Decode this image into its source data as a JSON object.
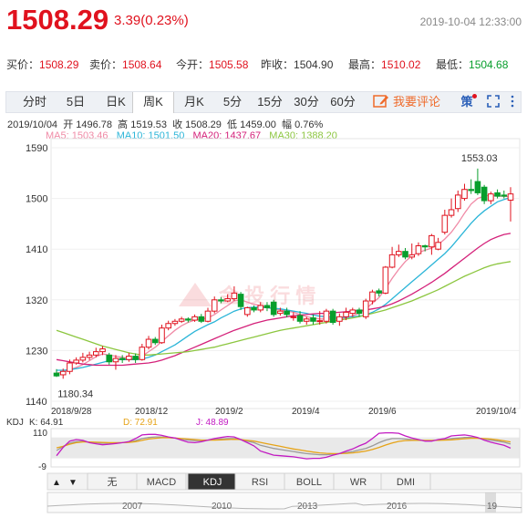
{
  "header": {
    "price": "1508.29",
    "change": "3.39(0.23%)",
    "timestamp": "2019-10-04 12:33:00"
  },
  "quote": {
    "bid_label": "买价：",
    "bid": "1508.29",
    "ask_label": "卖价：",
    "ask": "1508.64",
    "open_label": "今开：",
    "open": "1505.58",
    "prev_label": "昨收：",
    "prev": "1504.90",
    "high_label": "最高：",
    "high": "1510.02",
    "low_label": "最低：",
    "low": "1504.68"
  },
  "tabs": [
    "分时",
    "5日",
    "日K",
    "周K",
    "月K",
    "5分",
    "15分",
    "30分",
    "60分"
  ],
  "active_tab": "周K",
  "comment_label": "我要评论",
  "toolbar": {
    "strategy_label": "策"
  },
  "info": {
    "date": "2019/10/04",
    "open_label": "开",
    "open": "1496.78",
    "high_label": "高",
    "high": "1519.53",
    "close_label": "收",
    "close": "1508.29",
    "low_label": "低",
    "low": "1459.00",
    "amp_label": "幅",
    "amp": "0.76%"
  },
  "ma": [
    {
      "label": "MA5:",
      "value": "1503.46",
      "color": "#f08aa6"
    },
    {
      "label": "MA10:",
      "value": "1501.50",
      "color": "#2bb5d8"
    },
    {
      "label": "MA20:",
      "value": "1437.67",
      "color": "#d4217a"
    },
    {
      "label": "MA30:",
      "value": "1388.20",
      "color": "#8cc63f"
    }
  ],
  "kdj": {
    "title": "KDJ",
    "k_label": "K:",
    "k": "64.91",
    "d_label": "D:",
    "d": "72.91",
    "j_label": "J:",
    "j": "48.89"
  },
  "indicator_tabs": [
    "无",
    "MACD",
    "KDJ",
    "RSI",
    "BOLL",
    "WR",
    "DMI"
  ],
  "active_indicator": "KDJ",
  "navigator": {
    "years": [
      "2007",
      "2010",
      "2013",
      "2016",
      "19"
    ]
  },
  "colors": {
    "up": "#e0121e",
    "down": "#079e2c",
    "accent": "#ef6a2a"
  },
  "chart_data": {
    "type": "candlestick",
    "y_ticks": [
      "1590",
      "1500",
      "1410",
      "1320",
      "1230",
      "1140"
    ],
    "ylim": [
      1140,
      1590
    ],
    "x_ticks": [
      "2018/9/28",
      "2018/12",
      "2019/2",
      "2019/4",
      "2019/6",
      "2019/10/4"
    ],
    "annotations": {
      "max": "1553.03",
      "min": "1180.34"
    },
    "candles": [
      {
        "o": 1190,
        "c": 1185,
        "h": 1197,
        "l": 1183
      },
      {
        "o": 1187,
        "c": 1193,
        "h": 1198,
        "l": 1180
      },
      {
        "o": 1193,
        "c": 1208,
        "h": 1214,
        "l": 1188
      },
      {
        "o": 1208,
        "c": 1213,
        "h": 1218,
        "l": 1205
      },
      {
        "o": 1213,
        "c": 1218,
        "h": 1226,
        "l": 1209
      },
      {
        "o": 1218,
        "c": 1222,
        "h": 1228,
        "l": 1213
      },
      {
        "o": 1222,
        "c": 1228,
        "h": 1235,
        "l": 1218
      },
      {
        "o": 1228,
        "c": 1233,
        "h": 1238,
        "l": 1222
      },
      {
        "o": 1222,
        "c": 1210,
        "h": 1226,
        "l": 1205
      },
      {
        "o": 1210,
        "c": 1216,
        "h": 1222,
        "l": 1196
      },
      {
        "o": 1216,
        "c": 1214,
        "h": 1222,
        "l": 1208
      },
      {
        "o": 1214,
        "c": 1220,
        "h": 1226,
        "l": 1210
      },
      {
        "o": 1220,
        "c": 1214,
        "h": 1225,
        "l": 1208
      },
      {
        "o": 1214,
        "c": 1236,
        "h": 1242,
        "l": 1212
      },
      {
        "o": 1236,
        "c": 1250,
        "h": 1256,
        "l": 1232
      },
      {
        "o": 1250,
        "c": 1244,
        "h": 1254,
        "l": 1240
      },
      {
        "o": 1244,
        "c": 1270,
        "h": 1276,
        "l": 1242
      },
      {
        "o": 1270,
        "c": 1278,
        "h": 1283,
        "l": 1266
      },
      {
        "o": 1278,
        "c": 1282,
        "h": 1286,
        "l": 1274
      },
      {
        "o": 1282,
        "c": 1286,
        "h": 1290,
        "l": 1279
      },
      {
        "o": 1286,
        "c": 1284,
        "h": 1289,
        "l": 1280
      },
      {
        "o": 1284,
        "c": 1290,
        "h": 1294,
        "l": 1281
      },
      {
        "o": 1290,
        "c": 1282,
        "h": 1295,
        "l": 1279
      },
      {
        "o": 1282,
        "c": 1300,
        "h": 1306,
        "l": 1280
      },
      {
        "o": 1300,
        "c": 1320,
        "h": 1326,
        "l": 1296
      },
      {
        "o": 1320,
        "c": 1318,
        "h": 1325,
        "l": 1314
      },
      {
        "o": 1318,
        "c": 1322,
        "h": 1330,
        "l": 1316
      },
      {
        "o": 1322,
        "c": 1332,
        "h": 1344,
        "l": 1318
      },
      {
        "o": 1330,
        "c": 1308,
        "h": 1334,
        "l": 1302
      },
      {
        "o": 1294,
        "c": 1306,
        "h": 1308,
        "l": 1290
      },
      {
        "o": 1306,
        "c": 1302,
        "h": 1310,
        "l": 1298
      },
      {
        "o": 1302,
        "c": 1310,
        "h": 1316,
        "l": 1298
      },
      {
        "o": 1310,
        "c": 1306,
        "h": 1316,
        "l": 1300
      },
      {
        "o": 1316,
        "c": 1294,
        "h": 1320,
        "l": 1290
      },
      {
        "o": 1296,
        "c": 1300,
        "h": 1306,
        "l": 1292
      },
      {
        "o": 1300,
        "c": 1294,
        "h": 1306,
        "l": 1289
      },
      {
        "o": 1290,
        "c": 1290,
        "h": 1298,
        "l": 1283
      },
      {
        "o": 1292,
        "c": 1282,
        "h": 1300,
        "l": 1278
      },
      {
        "o": 1282,
        "c": 1286,
        "h": 1290,
        "l": 1276
      },
      {
        "o": 1288,
        "c": 1282,
        "h": 1294,
        "l": 1276
      },
      {
        "o": 1282,
        "c": 1283,
        "h": 1300,
        "l": 1276
      },
      {
        "o": 1282,
        "c": 1300,
        "h": 1304,
        "l": 1278
      },
      {
        "o": 1300,
        "c": 1280,
        "h": 1304,
        "l": 1276
      },
      {
        "o": 1282,
        "c": 1290,
        "h": 1296,
        "l": 1274
      },
      {
        "o": 1290,
        "c": 1298,
        "h": 1306,
        "l": 1284
      },
      {
        "o": 1296,
        "c": 1302,
        "h": 1306,
        "l": 1290
      },
      {
        "o": 1302,
        "c": 1296,
        "h": 1306,
        "l": 1290
      },
      {
        "o": 1290,
        "c": 1318,
        "h": 1322,
        "l": 1286
      },
      {
        "o": 1318,
        "c": 1334,
        "h": 1338,
        "l": 1312
      },
      {
        "o": 1336,
        "c": 1332,
        "h": 1340,
        "l": 1326
      },
      {
        "o": 1332,
        "c": 1378,
        "h": 1380,
        "l": 1330
      },
      {
        "o": 1378,
        "c": 1400,
        "h": 1414,
        "l": 1376
      },
      {
        "o": 1400,
        "c": 1406,
        "h": 1418,
        "l": 1396
      },
      {
        "o": 1406,
        "c": 1396,
        "h": 1412,
        "l": 1392
      },
      {
        "o": 1396,
        "c": 1400,
        "h": 1420,
        "l": 1392
      },
      {
        "o": 1402,
        "c": 1416,
        "h": 1422,
        "l": 1398
      },
      {
        "o": 1416,
        "c": 1414,
        "h": 1418,
        "l": 1406
      },
      {
        "o": 1414,
        "c": 1434,
        "h": 1437,
        "l": 1400
      },
      {
        "o": 1410,
        "c": 1422,
        "h": 1430,
        "l": 1408
      },
      {
        "o": 1440,
        "c": 1470,
        "h": 1480,
        "l": 1436
      },
      {
        "o": 1470,
        "c": 1480,
        "h": 1500,
        "l": 1466
      },
      {
        "o": 1482,
        "c": 1506,
        "h": 1514,
        "l": 1476
      },
      {
        "o": 1500,
        "c": 1516,
        "h": 1526,
        "l": 1496
      },
      {
        "o": 1516,
        "c": 1514,
        "h": 1534,
        "l": 1508
      },
      {
        "o": 1530,
        "c": 1510,
        "h": 1553,
        "l": 1506
      },
      {
        "o": 1520,
        "c": 1496,
        "h": 1524,
        "l": 1490
      },
      {
        "o": 1496,
        "c": 1508,
        "h": 1512,
        "l": 1490
      },
      {
        "o": 1510,
        "c": 1504,
        "h": 1516,
        "l": 1500
      },
      {
        "o": 1506,
        "c": 1504,
        "h": 1514,
        "l": 1500
      },
      {
        "o": 1497,
        "c": 1508,
        "h": 1520,
        "l": 1459
      }
    ],
    "ma_series": {
      "MA5": [
        1190,
        1192,
        1196,
        1200,
        1205,
        1212,
        1219,
        1224,
        1222,
        1220,
        1218,
        1216,
        1214,
        1220,
        1228,
        1236,
        1246,
        1256,
        1266,
        1274,
        1280,
        1284,
        1286,
        1288,
        1294,
        1302,
        1310,
        1318,
        1320,
        1316,
        1312,
        1310,
        1306,
        1304,
        1302,
        1300,
        1298,
        1294,
        1290,
        1288,
        1286,
        1286,
        1286,
        1286,
        1288,
        1292,
        1296,
        1304,
        1314,
        1324,
        1340,
        1358,
        1374,
        1388,
        1398,
        1404,
        1408,
        1412,
        1418,
        1428,
        1440,
        1456,
        1474,
        1490,
        1500,
        1504,
        1506,
        1504,
        1504,
        1503
      ],
      "MA10": [
        1195,
        1195,
        1196,
        1198,
        1200,
        1203,
        1206,
        1209,
        1212,
        1214,
        1214,
        1214,
        1214,
        1215,
        1218,
        1222,
        1228,
        1234,
        1240,
        1248,
        1256,
        1264,
        1270,
        1276,
        1281,
        1288,
        1294,
        1300,
        1304,
        1306,
        1307,
        1307,
        1306,
        1305,
        1304,
        1302,
        1300,
        1298,
        1296,
        1293,
        1291,
        1290,
        1289,
        1289,
        1289,
        1290,
        1291,
        1293,
        1298,
        1304,
        1312,
        1322,
        1332,
        1342,
        1352,
        1362,
        1372,
        1382,
        1392,
        1402,
        1414,
        1428,
        1442,
        1456,
        1468,
        1478,
        1486,
        1494,
        1498,
        1502
      ],
      "MA20": [
        1214,
        1212,
        1210,
        1208,
        1206,
        1205,
        1204,
        1204,
        1204,
        1204,
        1204,
        1205,
        1206,
        1207,
        1208,
        1210,
        1213,
        1217,
        1221,
        1226,
        1231,
        1236,
        1241,
        1246,
        1251,
        1256,
        1261,
        1266,
        1270,
        1274,
        1278,
        1281,
        1284,
        1286,
        1288,
        1290,
        1292,
        1293,
        1294,
        1295,
        1296,
        1296,
        1297,
        1298,
        1299,
        1300,
        1301,
        1302,
        1304,
        1306,
        1309,
        1313,
        1318,
        1324,
        1330,
        1337,
        1344,
        1351,
        1359,
        1367,
        1376,
        1385,
        1394,
        1403,
        1412,
        1420,
        1427,
        1432,
        1436,
        1438
      ],
      "MA30": [
        1266,
        1262,
        1258,
        1254,
        1250,
        1246,
        1242,
        1238,
        1235,
        1232,
        1229,
        1226,
        1224,
        1222,
        1222,
        1223,
        1224,
        1225,
        1226,
        1227,
        1228,
        1230,
        1232,
        1234,
        1236,
        1239,
        1242,
        1245,
        1248,
        1251,
        1254,
        1257,
        1260,
        1263,
        1266,
        1268,
        1270,
        1272,
        1274,
        1276,
        1278,
        1280,
        1282,
        1284,
        1286,
        1288,
        1290,
        1293,
        1296,
        1299,
        1302,
        1306,
        1310,
        1314,
        1318,
        1323,
        1328,
        1333,
        1338,
        1344,
        1350,
        1356,
        1362,
        1367,
        1372,
        1377,
        1381,
        1384,
        1386,
        1388
      ]
    },
    "kdj_series": {
      "K": [
        40,
        55,
        68,
        74,
        75,
        72,
        70,
        68,
        68,
        69,
        70,
        72,
        78,
        86,
        90,
        92,
        92,
        90,
        88,
        84,
        80,
        78,
        78,
        80,
        82,
        84,
        86,
        86,
        82,
        76,
        70,
        60,
        54,
        48,
        44,
        40,
        36,
        32,
        28,
        26,
        24,
        24,
        26,
        28,
        32,
        36,
        42,
        48,
        58,
        70,
        80,
        86,
        86,
        84,
        82,
        80,
        78,
        78,
        80,
        82,
        86,
        88,
        90,
        90,
        88,
        84,
        80,
        76,
        72,
        65
      ],
      "D": [
        50,
        56,
        64,
        70,
        73,
        73,
        72,
        71,
        70,
        70,
        70,
        71,
        74,
        79,
        84,
        87,
        89,
        89,
        88,
        86,
        84,
        82,
        80,
        80,
        80,
        81,
        82,
        83,
        82,
        79,
        76,
        71,
        66,
        61,
        56,
        51,
        46,
        42,
        38,
        34,
        31,
        29,
        28,
        28,
        29,
        31,
        34,
        38,
        44,
        52,
        61,
        69,
        75,
        78,
        79,
        79,
        79,
        79,
        79,
        80,
        81,
        83,
        85,
        87,
        87,
        86,
        84,
        81,
        77,
        73
      ],
      "J": [
        20,
        52,
        76,
        82,
        79,
        70,
        66,
        62,
        64,
        67,
        70,
        74,
        86,
        100,
        102,
        102,
        98,
        92,
        88,
        80,
        72,
        70,
        74,
        80,
        86,
        90,
        94,
        92,
        82,
        70,
        58,
        38,
        30,
        22,
        20,
        18,
        16,
        12,
        8,
        10,
        10,
        14,
        22,
        28,
        38,
        46,
        58,
        68,
        86,
        106,
        108,
        108,
        106,
        96,
        88,
        82,
        76,
        76,
        82,
        86,
        96,
        98,
        100,
        96,
        90,
        80,
        72,
        66,
        60,
        49
      ]
    }
  }
}
